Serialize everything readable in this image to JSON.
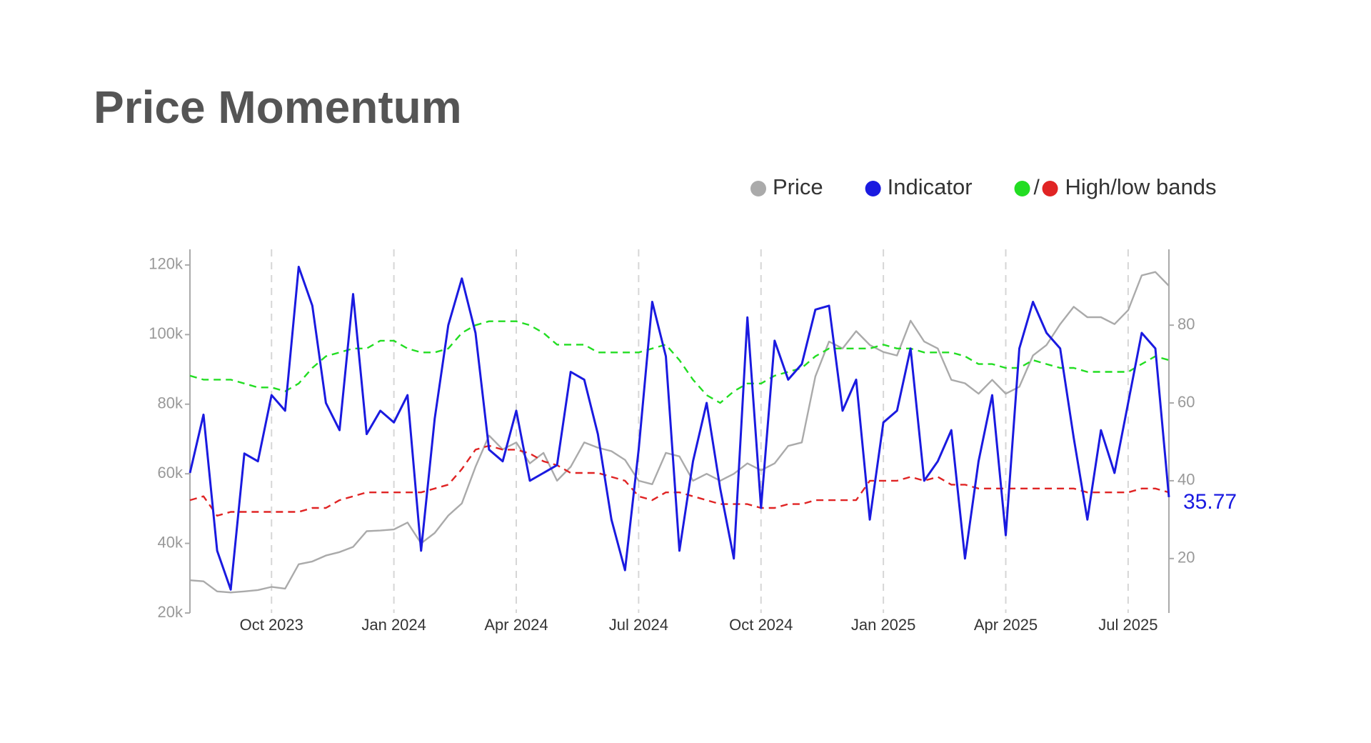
{
  "chart_data": {
    "type": "line",
    "title": "Price Momentum",
    "categories": [
      null,
      null,
      null,
      null,
      null,
      null,
      "Oct 2023",
      null,
      null,
      null,
      null,
      null,
      null,
      null,
      null,
      "Jan 2024",
      null,
      null,
      null,
      null,
      null,
      null,
      null,
      null,
      "Apr 2024",
      null,
      null,
      null,
      null,
      null,
      null,
      null,
      null,
      "Jul 2024",
      null,
      null,
      null,
      null,
      null,
      null,
      null,
      null,
      "Oct 2024",
      null,
      null,
      null,
      null,
      null,
      null,
      null,
      null,
      "Jan 2025",
      null,
      null,
      null,
      null,
      null,
      null,
      null,
      null,
      "Apr 2025",
      null,
      null,
      null,
      null,
      null,
      null,
      null,
      null,
      "Jul 2025",
      null,
      null,
      null
    ],
    "series": [
      {
        "name": "Price",
        "color": "#aaaaaa",
        "axis": "y",
        "line_style": "solid",
        "values": [
          29400,
          29100,
          26200,
          25900,
          26200,
          26600,
          27500,
          27000,
          34000,
          34800,
          36500,
          37500,
          39000,
          43500,
          43700,
          44000,
          46000,
          40000,
          43000,
          48000,
          51500,
          62000,
          71000,
          67000,
          69000,
          63000,
          66000,
          58000,
          62000,
          69000,
          67500,
          66500,
          64000,
          58000,
          57000,
          66000,
          65000,
          58000,
          60000,
          58000,
          60000,
          63000,
          61000,
          63000,
          68000,
          69000,
          88000,
          98000,
          96000,
          101000,
          97000,
          95000,
          94000,
          104000,
          98000,
          96000,
          87000,
          86000,
          83000,
          87000,
          83000,
          85000,
          94000,
          97000,
          103000,
          108000,
          105000,
          105000,
          103000,
          107000,
          117000,
          118000,
          114000
        ]
      },
      {
        "name": "Indicator",
        "color": "#1a1ae0",
        "axis": "y2",
        "line_style": "solid",
        "label_last": true,
        "values": [
          42,
          57,
          22,
          12,
          47,
          45,
          62,
          58,
          95,
          85,
          60,
          53,
          88,
          52,
          58,
          55,
          62,
          22,
          56,
          80,
          92,
          78,
          48,
          45,
          58,
          40,
          42,
          44,
          68,
          66,
          52,
          30,
          17,
          48,
          86,
          72,
          22,
          45,
          60,
          38,
          20,
          82,
          33,
          76,
          66,
          70,
          84,
          85,
          58,
          66,
          30,
          55,
          58,
          74,
          40,
          45,
          53,
          20,
          45,
          62,
          26,
          74,
          86,
          78,
          74,
          51,
          30,
          53,
          42,
          60,
          78,
          74,
          35.77
        ]
      },
      {
        "name": "High/low bands",
        "color": "#22dd22",
        "axis": "y2",
        "line_style": "dashed",
        "values": [
          67,
          66,
          66,
          66,
          65,
          64,
          64,
          63,
          65,
          69,
          72,
          73,
          74,
          74,
          76,
          76,
          74,
          73,
          73,
          74,
          78,
          80,
          81,
          81,
          81,
          80,
          78,
          75,
          75,
          75,
          73,
          73,
          73,
          73,
          74,
          75,
          71,
          66,
          62,
          60,
          63,
          65,
          65,
          67,
          68,
          69,
          72,
          74,
          74,
          74,
          74,
          75,
          74,
          74,
          73,
          73,
          73,
          72,
          70,
          70,
          69,
          69,
          71,
          70,
          69,
          69,
          68,
          68,
          68,
          68,
          70,
          72,
          71
        ]
      },
      {
        "color": "#e02424",
        "axis": "y2",
        "line_style": "dashed",
        "values": [
          35,
          36,
          31,
          32,
          32,
          32,
          32,
          32,
          32,
          33,
          33,
          35,
          36,
          37,
          37,
          37,
          37,
          37,
          38,
          39,
          43,
          48,
          49,
          48,
          48,
          47,
          45,
          44,
          42,
          42,
          42,
          41,
          40,
          36,
          35,
          37,
          37,
          36,
          35,
          34,
          34,
          34,
          33,
          33,
          34,
          34,
          35,
          35,
          35,
          35,
          40,
          40,
          40,
          41,
          40,
          41,
          39,
          39,
          38,
          38,
          38,
          38,
          38,
          38,
          38,
          38,
          37,
          37,
          37,
          37,
          38,
          38,
          37
        ]
      }
    ],
    "legend_separator": "/",
    "ylim": [
      20000,
      124500
    ],
    "yticks": [
      {
        "value": 20000,
        "label": "20k"
      },
      {
        "value": 40000,
        "label": "40k"
      },
      {
        "value": 60000,
        "label": "60k"
      },
      {
        "value": 80000,
        "label": "80k"
      },
      {
        "value": 100000,
        "label": "100k"
      },
      {
        "value": 120000,
        "label": "120k"
      }
    ],
    "y2lim": [
      6,
      99.5
    ],
    "y2ticks": [
      20,
      40,
      60,
      80
    ],
    "x_grid": true
  }
}
